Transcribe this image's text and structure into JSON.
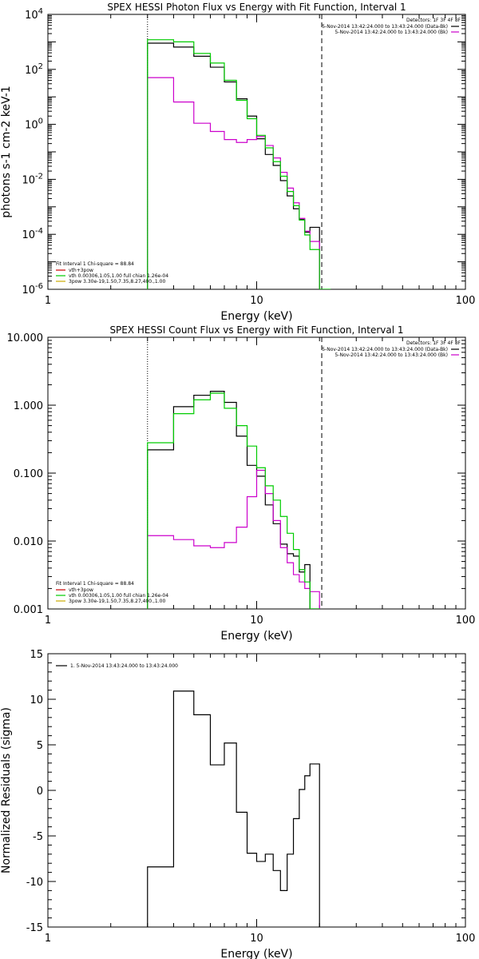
{
  "chart_data": [
    {
      "type": "line",
      "title": "SPEX HESSI Photon Flux vs Energy with Fit Function, Interval 1",
      "xlabel": "Energy (keV)",
      "ylabel": "photons s-1 cm-2 keV-1",
      "xscale": "log",
      "yscale": "log",
      "xlim": [
        1,
        100
      ],
      "ylim": [
        1e-06,
        10000
      ],
      "x_ticks": [
        "1",
        "10",
        "100"
      ],
      "y_ticks": [
        {
          "base": "10",
          "exp": "-6",
          "value": 1e-06
        },
        {
          "base": "10",
          "exp": "-4",
          "value": 0.0001
        },
        {
          "base": "10",
          "exp": "-2",
          "value": 0.01
        },
        {
          "base": "10",
          "exp": "0",
          "value": 1
        },
        {
          "base": "10",
          "exp": "2",
          "value": 100
        },
        {
          "base": "10",
          "exp": "4",
          "value": 10000
        }
      ],
      "vlines": [
        {
          "x": 3.0,
          "style": "dotted"
        },
        {
          "x": 20.5,
          "style": "dashed"
        }
      ],
      "legend_tr": {
        "header": "Detectors: 1F 3F 4F 8F",
        "items": [
          {
            "text": "5-Nov-2014 13:42:24.000 to 13:43:24.000 (Data-Bk)",
            "color": "#000000"
          },
          {
            "text": "5-Nov-2014 13:42:24.000 to 13:43:24.000 (Bk)",
            "color": "#cc00cc"
          }
        ]
      },
      "legend_bl": {
        "header": "Fit Interval 1   Chi-square = 88.84",
        "items": [
          {
            "text": "vth+3pow",
            "color": "#cc0000"
          },
          {
            "text": "vth 0.00306,1.05,1.00  full chian 1.26e-04",
            "color": "#00cc00"
          },
          {
            "text": "3pow 3.30e-19,1.50,7.35,8.27,400.,1.00",
            "color": "#ccaa00"
          }
        ]
      },
      "series": [
        {
          "name": "5-Nov-2014 13:42:24.000 to 13:43:24.000 (Data-Bk)",
          "color": "#000000",
          "style": "step",
          "edges": [
            3.0,
            4.0,
            5.0,
            6.0,
            7.0,
            8.0,
            9.0,
            10.0,
            11.0,
            12.0,
            13.0,
            14.0,
            15.0,
            16.0,
            17.0,
            18.0,
            20.0
          ],
          "values": [
            900,
            650,
            300,
            120,
            35,
            8.5,
            2.0,
            0.3,
            0.08,
            0.032,
            0.009,
            0.0025,
            0.00085,
            0.00035,
            0.00012,
            0.00018
          ]
        },
        {
          "name": "5-Nov-2014 13:42:24.000 to 13:43:24.000 (Bk)",
          "color": "#cc00cc",
          "style": "step",
          "edges": [
            3.0,
            4.0,
            5.0,
            6.0,
            7.0,
            8.0,
            9.0,
            10.0,
            11.0,
            12.0,
            13.0,
            14.0,
            15.0,
            16.0,
            17.0,
            18.0,
            20.0
          ],
          "values": [
            50,
            6.5,
            1.1,
            0.55,
            0.28,
            0.22,
            0.28,
            0.36,
            0.17,
            0.06,
            0.018,
            0.0048,
            0.0014,
            0.00038,
            0.00013,
            5.5e-05
          ]
        },
        {
          "name": "vth 0.00306,1.05,1.00  full chian 1.26e-04",
          "color": "#00cc00",
          "style": "step",
          "edges": [
            3.0,
            4.0,
            5.0,
            6.0,
            7.0,
            8.0,
            9.0,
            10.0,
            11.0,
            12.0,
            13.0,
            14.0,
            15.0,
            16.0,
            17.0,
            18.0,
            20.0,
            22.5
          ],
          "values": [
            1200,
            1000,
            380,
            170,
            40,
            7.5,
            1.6,
            0.4,
            0.14,
            0.044,
            0.013,
            0.0036,
            0.0011,
            0.00033,
            9.5e-05,
            2.8e-05,
            1e-06
          ]
        }
      ]
    },
    {
      "type": "line",
      "title": "SPEX HESSI Count Flux vs Energy with Fit Function, Interval 1",
      "xlabel": "Energy (keV)",
      "ylabel": "",
      "xscale": "log",
      "yscale": "log",
      "xlim": [
        1,
        100
      ],
      "ylim": [
        0.001,
        10
      ],
      "x_ticks": [
        "1",
        "10",
        "100"
      ],
      "y_ticks": [
        {
          "label": "0.001",
          "value": 0.001
        },
        {
          "label": "0.010",
          "value": 0.01
        },
        {
          "label": "0.100",
          "value": 0.1
        },
        {
          "label": "1.000",
          "value": 1
        },
        {
          "label": "10.000",
          "value": 10
        }
      ],
      "vlines": [
        {
          "x": 3.0,
          "style": "dotted"
        },
        {
          "x": 20.5,
          "style": "dashed"
        }
      ],
      "legend_tr": {
        "header": "Detectors: 1F 3F 4F 8F",
        "items": [
          {
            "text": "5-Nov-2014 13:42:24.000 to 13:43:24.000 (Data-Bk)",
            "color": "#000000"
          },
          {
            "text": "5-Nov-2014 13:42:24.000 to 13:43:24.000 (Bk)",
            "color": "#cc00cc"
          }
        ]
      },
      "legend_bl": {
        "header": "Fit Interval 1   Chi-square = 88.84",
        "items": [
          {
            "text": "vth+3pow",
            "color": "#cc0000"
          },
          {
            "text": "vth 0.00306,1.05,1.00  full chian 1.26e-04",
            "color": "#00cc00"
          },
          {
            "text": "3pow 3.30e-19,1.50,7.35,8.27,400.,1.00",
            "color": "#ccaa00"
          }
        ]
      },
      "series": [
        {
          "name": "5-Nov-2014 13:42:24.000 to 13:43:24.000 (Data-Bk)",
          "color": "#000000",
          "style": "step",
          "edges": [
            3.0,
            4.0,
            5.0,
            6.0,
            7.0,
            8.0,
            9.0,
            10.0,
            11.0,
            12.0,
            13.0,
            14.0,
            15.0,
            16.0,
            17.0,
            18.0,
            20.0
          ],
          "values": [
            0.22,
            0.95,
            1.4,
            1.6,
            1.1,
            0.35,
            0.13,
            0.09,
            0.034,
            0.018,
            0.009,
            0.0065,
            0.006,
            0.0035,
            0.0045,
            0.001
          ]
        },
        {
          "name": "5-Nov-2014 13:42:24.000 to 13:43:24.000 (Bk)",
          "color": "#cc00cc",
          "style": "step",
          "edges": [
            3.0,
            4.0,
            5.0,
            6.0,
            7.0,
            8.0,
            9.0,
            10.0,
            11.0,
            12.0,
            13.0,
            14.0,
            15.0,
            16.0,
            17.0,
            18.0,
            20.0
          ],
          "values": [
            0.012,
            0.0105,
            0.0085,
            0.008,
            0.0095,
            0.016,
            0.045,
            0.11,
            0.05,
            0.02,
            0.008,
            0.0048,
            0.0032,
            0.0025,
            0.002,
            0.0018
          ]
        },
        {
          "name": "vth 0.00306,1.05,1.00  full chian 1.26e-04",
          "color": "#00cc00",
          "style": "step",
          "edges": [
            3.0,
            4.0,
            5.0,
            6.0,
            7.0,
            8.0,
            9.0,
            10.0,
            11.0,
            12.0,
            13.0,
            14.0,
            15.0,
            16.0,
            17.0,
            18.0,
            20.0
          ],
          "values": [
            0.28,
            0.75,
            1.2,
            1.5,
            0.9,
            0.5,
            0.25,
            0.12,
            0.065,
            0.04,
            0.023,
            0.013,
            0.0075,
            0.0038,
            0.0025,
            0.001
          ]
        }
      ]
    },
    {
      "type": "line",
      "title": "",
      "xlabel": "Energy (keV)",
      "ylabel": "Normalized Residuals (sigma)",
      "xscale": "log",
      "yscale": "linear",
      "xlim": [
        1,
        100
      ],
      "ylim": [
        -15,
        15
      ],
      "x_ticks": [
        "1",
        "10",
        "100"
      ],
      "y_ticks": [
        {
          "label": "-15",
          "value": -15
        },
        {
          "label": "-10",
          "value": -10
        },
        {
          "label": "-5",
          "value": -5
        },
        {
          "label": "0",
          "value": 0
        },
        {
          "label": "5",
          "value": 5
        },
        {
          "label": "10",
          "value": 10
        },
        {
          "label": "15",
          "value": 15
        }
      ],
      "legend_tl": {
        "items": [
          {
            "text": "1.  5-Nov-2014 13:43:24.000 to 13:43:24.000",
            "color": "#000000"
          }
        ]
      },
      "series": [
        {
          "name": "1.  5-Nov-2014 13:43:24.000 to 13:43:24.000",
          "color": "#000000",
          "style": "step",
          "edges": [
            3.0,
            4.0,
            5.0,
            6.0,
            7.0,
            8.0,
            9.0,
            10.0,
            11.0,
            12.0,
            13.0,
            14.0,
            15.0,
            16.0,
            17.0,
            18.0,
            20.0
          ],
          "values": [
            -8.4,
            10.9,
            8.3,
            2.8,
            5.2,
            -2.4,
            -6.9,
            -7.8,
            -7.0,
            -8.8,
            -11.0,
            -7.0,
            -3.1,
            0.1,
            1.6,
            2.9
          ]
        }
      ]
    }
  ]
}
